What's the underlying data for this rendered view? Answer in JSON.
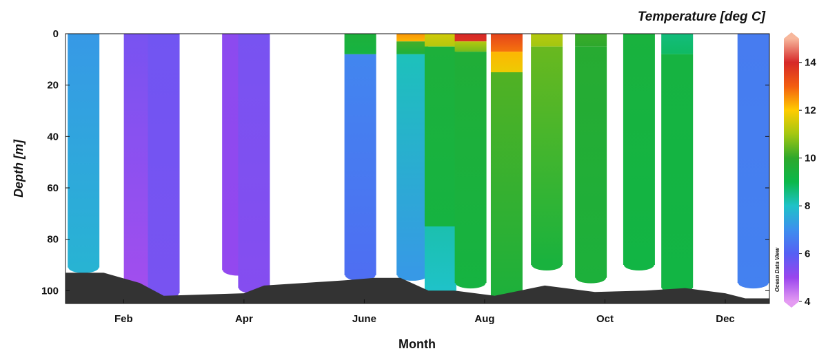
{
  "chart_data": {
    "type": "section",
    "title": "Temperature [deg C]",
    "xlabel": "Month",
    "ylabel": "Depth [m]",
    "x_unit": "day_of_year",
    "xlim": [
      11,
      362
    ],
    "ylim": [
      0,
      105
    ],
    "y_inverted": true,
    "x_ticks": [
      {
        "value": 40,
        "label": "Feb"
      },
      {
        "value": 100,
        "label": "Apr"
      },
      {
        "value": 160,
        "label": "June"
      },
      {
        "value": 220,
        "label": "Aug"
      },
      {
        "value": 280,
        "label": "Oct"
      },
      {
        "value": 340,
        "label": "Dec"
      }
    ],
    "y_ticks": [
      0,
      20,
      40,
      60,
      80,
      100
    ],
    "colorbar": {
      "label": "Temperature [deg C]",
      "min": 4,
      "max": 15,
      "ticks": [
        4,
        6,
        8,
        10,
        12,
        14
      ],
      "stops": [
        {
          "value": 4,
          "color": "#e49bf2"
        },
        {
          "value": 5,
          "color": "#9a45ee"
        },
        {
          "value": 6,
          "color": "#5560f4"
        },
        {
          "value": 7,
          "color": "#3d8fee"
        },
        {
          "value": 8,
          "color": "#1fc2c8"
        },
        {
          "value": 9,
          "color": "#0bb84a"
        },
        {
          "value": 10,
          "color": "#2ea82c"
        },
        {
          "value": 11,
          "color": "#a3c711"
        },
        {
          "value": 12,
          "color": "#ffcc00"
        },
        {
          "value": 13,
          "color": "#f35e10"
        },
        {
          "value": 14,
          "color": "#d62828"
        },
        {
          "value": 15,
          "color": "#f7b79c"
        }
      ]
    },
    "profiles": [
      {
        "x": 20,
        "bottom": 91,
        "segments": [
          {
            "from": 0,
            "to": 91,
            "temp_top": 7.2,
            "temp_bottom": 7.7
          }
        ]
      },
      {
        "x": 48,
        "bottom": 98,
        "segments": [
          {
            "from": 0,
            "to": 98,
            "temp_top": 5.5,
            "temp_bottom": 4.9
          }
        ]
      },
      {
        "x": 60,
        "bottom": 101,
        "segments": [
          {
            "from": 0,
            "to": 101,
            "temp_top": 5.6,
            "temp_bottom": 5.5
          }
        ]
      },
      {
        "x": 97,
        "bottom": 92,
        "segments": [
          {
            "from": 0,
            "to": 92,
            "temp_top": 5.2,
            "temp_bottom": 5.1
          }
        ]
      },
      {
        "x": 105,
        "bottom": 99,
        "segments": [
          {
            "from": 0,
            "to": 99,
            "temp_top": 5.5,
            "temp_bottom": 5.3
          }
        ]
      },
      {
        "x": 158,
        "bottom": 94,
        "segments": [
          {
            "from": 0,
            "to": 8,
            "temp_top": 9.5,
            "temp_bottom": 9.3
          },
          {
            "from": 8,
            "to": 94,
            "temp_top": 6.8,
            "temp_bottom": 6.3
          }
        ]
      },
      {
        "x": 184,
        "bottom": 94,
        "segments": [
          {
            "from": 0,
            "to": 3,
            "temp_top": 12.5,
            "temp_bottom": 12.2
          },
          {
            "from": 3,
            "to": 8,
            "temp_top": 10.2,
            "temp_bottom": 9.5
          },
          {
            "from": 8,
            "to": 94,
            "temp_top": 8.1,
            "temp_bottom": 7.2
          }
        ]
      },
      {
        "x": 198,
        "bottom": 100,
        "segments": [
          {
            "from": 0,
            "to": 5,
            "temp_top": 11.5,
            "temp_bottom": 11.2
          },
          {
            "from": 5,
            "to": 75,
            "temp_top": 9.5,
            "temp_bottom": 9.3
          },
          {
            "from": 75,
            "to": 100,
            "temp_top": 8.2,
            "temp_bottom": 8.0
          }
        ]
      },
      {
        "x": 213,
        "bottom": 97,
        "segments": [
          {
            "from": 0,
            "to": 3,
            "temp_top": 14.0,
            "temp_bottom": 13.8
          },
          {
            "from": 3,
            "to": 7,
            "temp_top": 11.2,
            "temp_bottom": 10.6
          },
          {
            "from": 7,
            "to": 97,
            "temp_top": 9.6,
            "temp_bottom": 9.3
          }
        ]
      },
      {
        "x": 231,
        "bottom": 102,
        "segments": [
          {
            "from": 0,
            "to": 7,
            "temp_top": 13.5,
            "temp_bottom": 12.8
          },
          {
            "from": 7,
            "to": 15,
            "temp_top": 12.2,
            "temp_bottom": 11.8
          },
          {
            "from": 15,
            "to": 102,
            "temp_top": 10.3,
            "temp_bottom": 9.5
          }
        ]
      },
      {
        "x": 251,
        "bottom": 90,
        "segments": [
          {
            "from": 0,
            "to": 5,
            "temp_top": 11.2,
            "temp_bottom": 11.0
          },
          {
            "from": 5,
            "to": 90,
            "temp_top": 10.5,
            "temp_bottom": 9.4
          }
        ]
      },
      {
        "x": 273,
        "bottom": 95,
        "segments": [
          {
            "from": 0,
            "to": 5,
            "temp_top": 10.1,
            "temp_bottom": 10.0
          },
          {
            "from": 5,
            "to": 95,
            "temp_top": 9.8,
            "temp_bottom": 9.5
          }
        ]
      },
      {
        "x": 297,
        "bottom": 90,
        "segments": [
          {
            "from": 0,
            "to": 90,
            "temp_top": 9.4,
            "temp_bottom": 9.2
          }
        ]
      },
      {
        "x": 316,
        "bottom": 99,
        "segments": [
          {
            "from": 0,
            "to": 8,
            "temp_top": 8.6,
            "temp_bottom": 8.8
          },
          {
            "from": 8,
            "to": 99,
            "temp_top": 9.3,
            "temp_bottom": 9.2
          }
        ]
      },
      {
        "x": 354,
        "bottom": 97,
        "segments": [
          {
            "from": 0,
            "to": 97,
            "temp_top": 6.6,
            "temp_bottom": 6.7
          }
        ]
      }
    ],
    "seafloor": [
      [
        11,
        93
      ],
      [
        30,
        93
      ],
      [
        48,
        97
      ],
      [
        60,
        102
      ],
      [
        100,
        101
      ],
      [
        110,
        98
      ],
      [
        150,
        96
      ],
      [
        165,
        95
      ],
      [
        178,
        95
      ],
      [
        192,
        100
      ],
      [
        205,
        100
      ],
      [
        225,
        102
      ],
      [
        250,
        98
      ],
      [
        275,
        100.5
      ],
      [
        300,
        100
      ],
      [
        320,
        99
      ],
      [
        340,
        101
      ],
      [
        350,
        103
      ],
      [
        362,
        103
      ]
    ],
    "watermark": "Ocean Data View"
  }
}
